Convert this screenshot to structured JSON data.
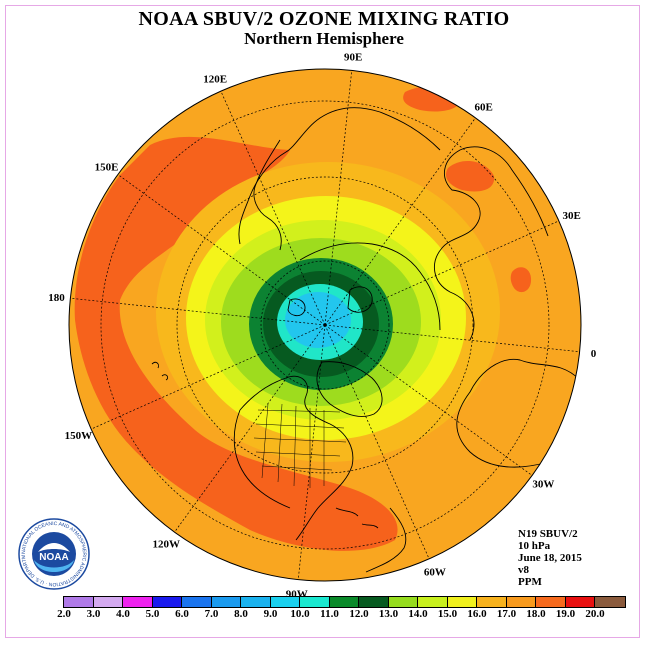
{
  "title": "NOAA SBUV/2 OZONE MIXING RATIO",
  "subtitle": "Northern Hemisphere",
  "info": {
    "satellite": "N19 SBUV/2",
    "pressure": "10 hPa",
    "date": "June 18, 2015",
    "version": "v8",
    "units": "PPM"
  },
  "longitude_labels": [
    "90E",
    "60E",
    "30E",
    "0",
    "30W",
    "60W",
    "90W",
    "120W",
    "150W",
    "180",
    "150E",
    "120E"
  ],
  "logo": {
    "text": "NOAA",
    "ring_text": "NATIONAL OCEANIC AND ATMOSPHERIC ADMINISTRATION · U.S. DEPARTMENT OF COMMERCE"
  },
  "legend": {
    "values": [
      "2.0",
      "3.0",
      "4.0",
      "5.0",
      "6.0",
      "7.0",
      "8.0",
      "9.0",
      "10.0",
      "11.0",
      "12.0",
      "13.0",
      "14.0",
      "15.0",
      "16.0",
      "17.0",
      "18.0",
      "19.0",
      "20.0"
    ],
    "colors": [
      "#b07ae8",
      "#d4aaf0",
      "#ee22ee",
      "#1a1aee",
      "#1a74ee",
      "#1a9aee",
      "#1ab2ee",
      "#1ad0ee",
      "#1ae8d0",
      "#0a8a2a",
      "#065a20",
      "#96dc1e",
      "#c8f01e",
      "#f0f01e",
      "#f7b21e",
      "#f79a1e",
      "#f66a1e",
      "#e81010",
      "#8a5a3c"
    ]
  },
  "map_colors": {
    "outer": "#f9a620",
    "band_18": "#f6621c",
    "band_16": "#f8b81c",
    "band_15": "#f4f41a",
    "band_14": "#d2f01c",
    "band_13": "#9edc1e",
    "band_12": "#0c8232",
    "band_11": "#065a20",
    "band_10": "#20e6c8",
    "core": "#22c6ee",
    "coast": "#000000"
  }
}
